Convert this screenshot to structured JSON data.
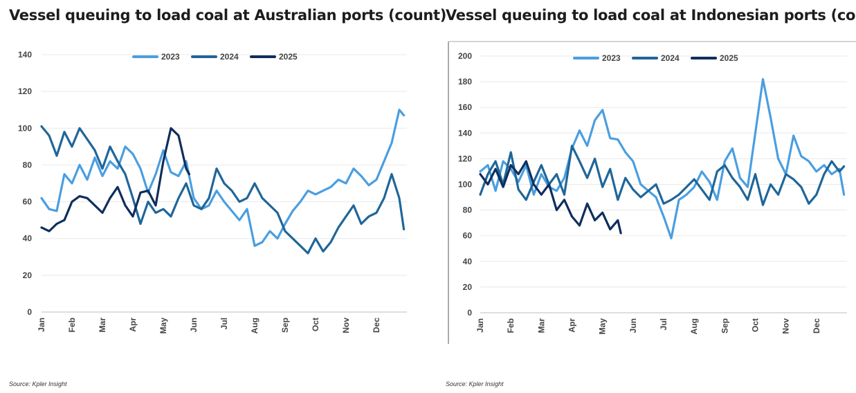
{
  "charts": [
    {
      "title": "Vessel queuing to load coal at Australian ports (count)",
      "source": "Source: Kpler Insight"
    },
    {
      "title": "Vessel queuing to load coal at Indonesian ports (count)",
      "source": "Source: Kpler Insight"
    }
  ],
  "chart_data": [
    {
      "type": "line",
      "title": "Vessel queuing to load coal at Australian ports (count)",
      "xlabel": "",
      "ylabel": "",
      "ylim": [
        0,
        140
      ],
      "yticks": [
        0,
        20,
        40,
        60,
        80,
        100,
        120,
        140
      ],
      "categories": [
        "Jan",
        "Feb",
        "Mar",
        "Apr",
        "May",
        "Jun",
        "Jul",
        "Aug",
        "Sep",
        "Oct",
        "Nov",
        "Dec"
      ],
      "grid": true,
      "legend": "top-center",
      "series": [
        {
          "name": "2023",
          "color": "#4a9ee0",
          "x": [
            0,
            0.25,
            0.5,
            0.75,
            1,
            1.25,
            1.5,
            1.75,
            2,
            2.25,
            2.5,
            2.75,
            3,
            3.25,
            3.5,
            3.75,
            4,
            4.25,
            4.5,
            4.75,
            5,
            5.25,
            5.5,
            5.75,
            6,
            6.25,
            6.5,
            6.75,
            7,
            7.25,
            7.5,
            7.75,
            8,
            8.25,
            8.5,
            8.75,
            9,
            9.25,
            9.5,
            9.75,
            10,
            10.25,
            10.5,
            10.75,
            11,
            11.25,
            11.5,
            11.75,
            11.9
          ],
          "values": [
            62,
            56,
            55,
            75,
            70,
            80,
            72,
            84,
            74,
            82,
            78,
            90,
            86,
            78,
            65,
            75,
            88,
            76,
            74,
            82,
            62,
            56,
            58,
            66,
            60,
            55,
            50,
            56,
            36,
            38,
            44,
            40,
            48,
            55,
            60,
            66,
            64,
            66,
            68,
            72,
            70,
            78,
            74,
            69,
            72,
            82,
            92,
            110,
            107
          ]
        },
        {
          "name": "2024",
          "color": "#1f6699",
          "x": [
            0,
            0.25,
            0.5,
            0.75,
            1,
            1.25,
            1.5,
            1.75,
            2,
            2.25,
            2.5,
            2.75,
            3,
            3.25,
            3.5,
            3.75,
            4,
            4.25,
            4.5,
            4.75,
            5,
            5.25,
            5.5,
            5.75,
            6,
            6.25,
            6.5,
            6.75,
            7,
            7.25,
            7.5,
            7.75,
            8,
            8.25,
            8.5,
            8.75,
            9,
            9.25,
            9.5,
            9.75,
            10,
            10.25,
            10.5,
            10.75,
            11,
            11.25,
            11.5,
            11.75,
            11.9
          ],
          "values": [
            101,
            96,
            85,
            98,
            90,
            100,
            94,
            88,
            78,
            90,
            82,
            75,
            62,
            48,
            60,
            54,
            56,
            52,
            62,
            70,
            58,
            56,
            62,
            78,
            70,
            66,
            60,
            62,
            70,
            62,
            58,
            54,
            44,
            40,
            36,
            32,
            40,
            33,
            38,
            46,
            52,
            58,
            48,
            52,
            54,
            62,
            75,
            62,
            45
          ]
        },
        {
          "name": "2025",
          "color": "#0f2e5c",
          "x": [
            0,
            0.25,
            0.5,
            0.75,
            1,
            1.25,
            1.5,
            1.75,
            2,
            2.25,
            2.5,
            2.75,
            3,
            3.25,
            3.5,
            3.75,
            4,
            4.25,
            4.5,
            4.75,
            4.85
          ],
          "values": [
            46,
            44,
            48,
            50,
            60,
            63,
            62,
            58,
            54,
            62,
            68,
            58,
            52,
            65,
            66,
            58,
            82,
            100,
            96,
            78,
            75
          ]
        }
      ]
    },
    {
      "type": "line",
      "title": "Vessel queuing to load coal at Indonesian ports (count)",
      "xlabel": "",
      "ylabel": "",
      "ylim": [
        0,
        200
      ],
      "yticks": [
        0,
        20,
        40,
        60,
        80,
        100,
        120,
        140,
        160,
        180,
        200
      ],
      "categories": [
        "Jan",
        "Feb",
        "Mar",
        "Apr",
        "May",
        "Jun",
        "Jul",
        "Aug",
        "Sep",
        "Oct",
        "Nov",
        "Dec"
      ],
      "grid": true,
      "legend": "top-center",
      "series": [
        {
          "name": "2023",
          "color": "#4a9ee0",
          "x": [
            0,
            0.25,
            0.5,
            0.75,
            1,
            1.25,
            1.5,
            1.75,
            2,
            2.25,
            2.5,
            2.75,
            3,
            3.25,
            3.5,
            3.75,
            4,
            4.25,
            4.5,
            4.75,
            5,
            5.25,
            5.5,
            5.75,
            6,
            6.25,
            6.5,
            6.75,
            7,
            7.25,
            7.5,
            7.75,
            8,
            8.25,
            8.5,
            8.75,
            9,
            9.25,
            9.5,
            9.75,
            10,
            10.25,
            10.5,
            10.75,
            11,
            11.25,
            11.5,
            11.75,
            11.9
          ],
          "values": [
            110,
            115,
            95,
            118,
            112,
            102,
            115,
            92,
            108,
            98,
            95,
            105,
            128,
            142,
            130,
            150,
            158,
            136,
            135,
            125,
            118,
            100,
            95,
            90,
            75,
            58,
            88,
            92,
            98,
            110,
            102,
            88,
            118,
            128,
            105,
            98,
            140,
            182,
            152,
            120,
            108,
            138,
            122,
            118,
            110,
            115,
            108,
            112,
            92
          ]
        },
        {
          "name": "2024",
          "color": "#1f6699",
          "x": [
            0,
            0.25,
            0.5,
            0.75,
            1,
            1.25,
            1.5,
            1.75,
            2,
            2.25,
            2.5,
            2.75,
            3,
            3.25,
            3.5,
            3.75,
            4,
            4.25,
            4.5,
            4.75,
            5,
            5.25,
            5.5,
            5.75,
            6,
            6.25,
            6.5,
            6.75,
            7,
            7.25,
            7.5,
            7.75,
            8,
            8.25,
            8.5,
            8.75,
            9,
            9.25,
            9.5,
            9.75,
            10,
            10.25,
            10.5,
            10.75,
            11,
            11.25,
            11.5,
            11.75,
            11.9
          ],
          "values": [
            92,
            108,
            118,
            100,
            125,
            96,
            88,
            102,
            115,
            100,
            108,
            92,
            130,
            118,
            105,
            120,
            98,
            112,
            88,
            105,
            96,
            90,
            95,
            100,
            85,
            88,
            92,
            98,
            104,
            96,
            88,
            110,
            115,
            105,
            98,
            88,
            108,
            84,
            100,
            92,
            108,
            104,
            98,
            85,
            92,
            108,
            118,
            110,
            114
          ]
        },
        {
          "name": "2025",
          "color": "#0f2e5c",
          "x": [
            0,
            0.25,
            0.5,
            0.75,
            1,
            1.25,
            1.5,
            1.75,
            2,
            2.25,
            2.5,
            2.75,
            3,
            3.25,
            3.5,
            3.75,
            4,
            4.25,
            4.5,
            4.6
          ],
          "values": [
            108,
            100,
            112,
            98,
            115,
            108,
            118,
            100,
            92,
            100,
            80,
            88,
            75,
            68,
            85,
            72,
            78,
            65,
            72,
            62
          ]
        }
      ]
    }
  ]
}
